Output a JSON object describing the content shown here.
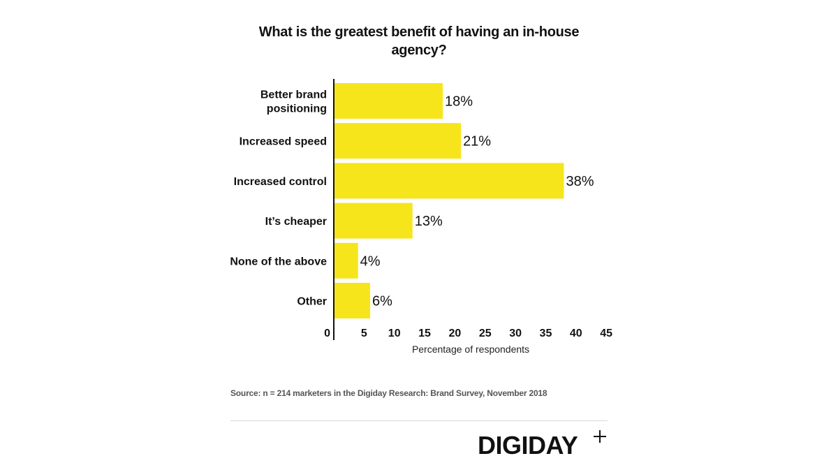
{
  "chart_data": {
    "type": "bar",
    "orientation": "horizontal",
    "title": "What is the greatest benefit of having an in-house agency?",
    "categories": [
      [
        "Better brand",
        "positioning"
      ],
      [
        "Increased speed"
      ],
      [
        "Increased control"
      ],
      [
        "It’s cheaper"
      ],
      [
        "None of the above"
      ],
      [
        "Other"
      ]
    ],
    "values": [
      18,
      21,
      38,
      13,
      4,
      6
    ],
    "value_labels": [
      "18%",
      "21%",
      "38%",
      "13%",
      "4%",
      "6%"
    ],
    "xlabel": "Percentage of respondents",
    "ylabel": "",
    "xlim": [
      0,
      45
    ],
    "xticks": [
      "0",
      "5",
      "10",
      "15",
      "20",
      "25",
      "30",
      "35",
      "40",
      "45"
    ],
    "bar_color": "#f7e51b",
    "grid": false
  },
  "source": "Source: n = 214 marketers in the Digiday Research: Brand Survey, November 2018",
  "logo": {
    "text": "DIGIDAY"
  }
}
